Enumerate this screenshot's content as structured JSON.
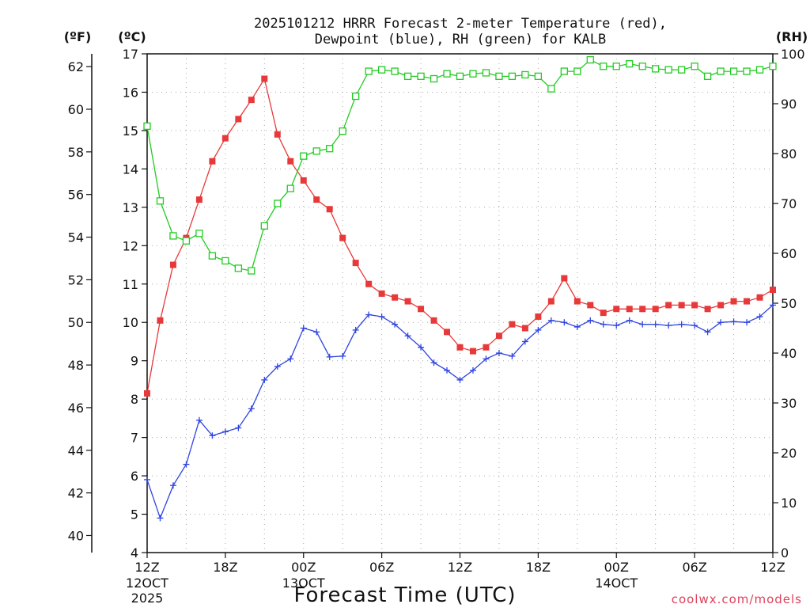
{
  "title_lines": [
    "2025101212 HRRR Forecast 2-meter Temperature (red),",
    "Dewpoint (blue), RH (green) for KALB"
  ],
  "units": {
    "f": "(ºF)",
    "c": "(ºC)",
    "rh": "(RH)"
  },
  "x_ticks": [
    {
      "label": "12Z",
      "sub": [
        "12OCT",
        "2025"
      ]
    },
    {
      "label": "18Z",
      "sub": []
    },
    {
      "label": "00Z",
      "sub": [
        "13OCT"
      ]
    },
    {
      "label": "06Z",
      "sub": []
    },
    {
      "label": "12Z",
      "sub": []
    },
    {
      "label": "18Z",
      "sub": []
    },
    {
      "label": "00Z",
      "sub": [
        "14OCT"
      ]
    },
    {
      "label": "06Z",
      "sub": []
    },
    {
      "label": "12Z",
      "sub": []
    }
  ],
  "xlabel": "Forecast Time (UTC)",
  "credit": "coolwx.com/models",
  "colors": {
    "temperature": "#e8393a",
    "dewpoint": "#2f45e0",
    "rh": "#22cc22"
  },
  "chart_data": {
    "type": "line",
    "x_unit": "forecast hour",
    "xlim": [
      0,
      48
    ],
    "x_tick_hours": [
      0,
      6,
      12,
      18,
      24,
      30,
      36,
      42,
      48
    ],
    "y_left_celsius": {
      "lim": [
        4,
        17
      ],
      "ticks": [
        4,
        5,
        6,
        7,
        8,
        9,
        10,
        11,
        12,
        13,
        14,
        15,
        16,
        17
      ]
    },
    "y_left_fahrenheit": {
      "ticks": [
        40,
        42,
        44,
        46,
        48,
        50,
        52,
        54,
        56,
        58,
        60,
        62
      ]
    },
    "y_right_rh": {
      "lim": [
        0,
        100
      ],
      "ticks": [
        0,
        10,
        20,
        30,
        40,
        50,
        60,
        70,
        80,
        90,
        100
      ]
    },
    "grid": true,
    "series": [
      {
        "name": "Temperature",
        "axis": "celsius",
        "marker": "filled-square",
        "values": [
          8.15,
          10.05,
          11.5,
          12.2,
          13.2,
          14.2,
          14.8,
          15.3,
          15.8,
          16.35,
          14.9,
          14.2,
          13.7,
          13.2,
          12.95,
          12.2,
          11.55,
          11.0,
          10.75,
          10.65,
          10.55,
          10.35,
          10.05,
          9.75,
          9.35,
          9.25,
          9.35,
          9.65,
          9.95,
          9.85,
          10.15,
          10.55,
          11.15,
          10.55,
          10.45,
          10.25,
          10.35,
          10.35,
          10.35,
          10.35,
          10.45,
          10.45,
          10.45,
          10.35,
          10.45,
          10.55,
          10.55,
          10.65,
          10.85
        ]
      },
      {
        "name": "Dewpoint",
        "axis": "celsius",
        "marker": "plus",
        "values": [
          5.9,
          4.9,
          5.75,
          6.3,
          7.45,
          7.05,
          7.15,
          7.25,
          7.75,
          8.5,
          8.85,
          9.05,
          9.85,
          9.75,
          9.1,
          9.12,
          9.8,
          10.2,
          10.15,
          9.95,
          9.65,
          9.35,
          8.95,
          8.75,
          8.5,
          8.75,
          9.05,
          9.2,
          9.12,
          9.5,
          9.8,
          10.05,
          10.0,
          9.88,
          10.05,
          9.95,
          9.92,
          10.05,
          9.95,
          9.95,
          9.92,
          9.95,
          9.92,
          9.75,
          10.0,
          10.02,
          10.0,
          10.15,
          10.45
        ]
      },
      {
        "name": "RH",
        "axis": "rh",
        "marker": "open-square",
        "values": [
          85.5,
          70.5,
          63.5,
          62.5,
          64,
          59.5,
          58.5,
          57,
          56.5,
          65.5,
          70,
          73,
          79.5,
          80.5,
          81,
          84.5,
          91.5,
          96.5,
          96.8,
          96.5,
          95.5,
          95.5,
          95,
          96,
          95.5,
          96,
          96.2,
          95.5,
          95.5,
          95.8,
          95.5,
          93,
          96.5,
          96.5,
          98.8,
          97.5,
          97.5,
          98,
          97.5,
          97,
          96.8,
          96.8,
          97.5,
          95.5,
          96.5,
          96.5,
          96.5,
          96.8,
          97.5
        ]
      }
    ]
  }
}
